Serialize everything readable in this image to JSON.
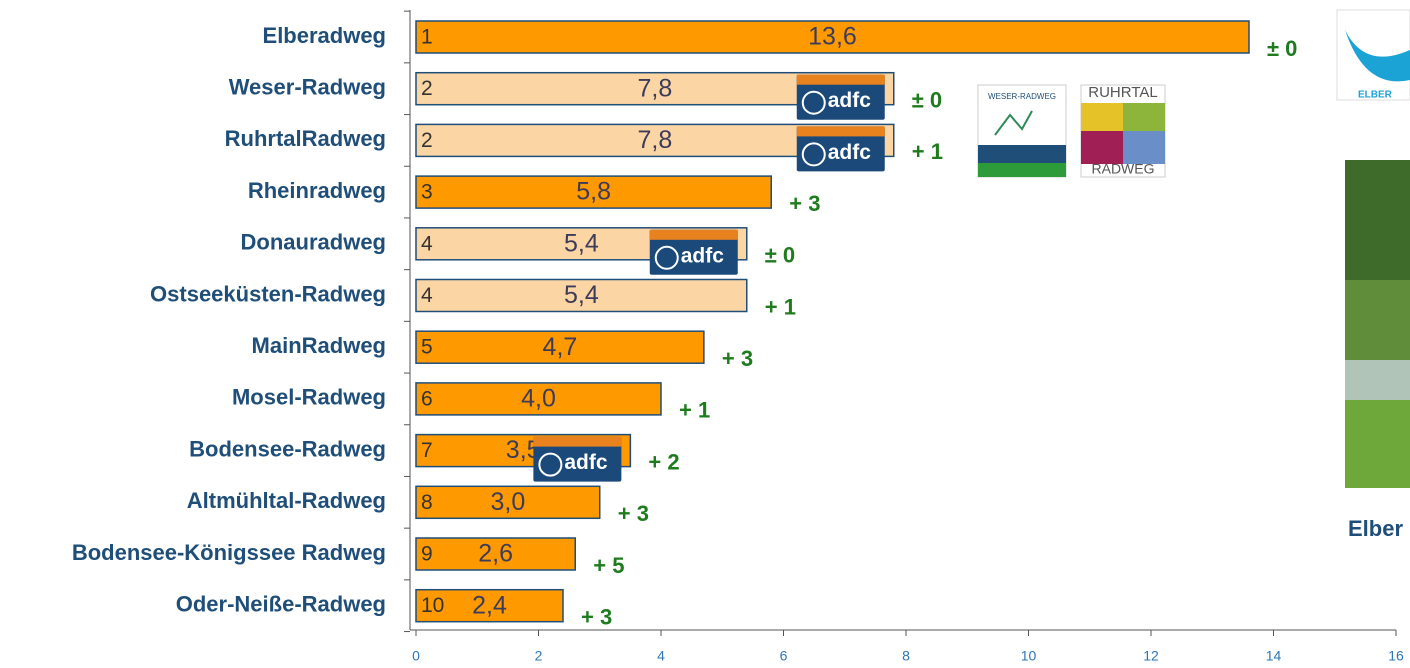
{
  "chart_data": {
    "type": "bar",
    "categories": [
      "Elberadweg",
      "Weser-Radweg",
      "RuhrtalRadweg",
      "Rheinradweg",
      "Donauradweg",
      "Ostseeküsten-Radweg",
      "MainRadweg",
      "Mosel-Radweg",
      "Bodensee-Radweg",
      "Altmühltal-Radweg",
      "Bodensee-Königssee Radweg",
      "Oder-Neiße-Radweg"
    ],
    "values": [
      13.6,
      7.8,
      7.8,
      5.8,
      5.4,
      5.4,
      4.7,
      4.0,
      3.5,
      3.0,
      2.6,
      2.4
    ],
    "value_labels": [
      "13,6",
      "7,8",
      "7,8",
      "5,8",
      "5,4",
      "5,4",
      "4,7",
      "4,0",
      "3,5",
      "3,0",
      "2,6",
      "2,4"
    ],
    "ranks": [
      1,
      2,
      2,
      3,
      4,
      4,
      5,
      6,
      7,
      8,
      9,
      10
    ],
    "changes": [
      "± 0",
      "± 0",
      "+ 1",
      "+ 3",
      "± 0",
      "+ 1",
      "+ 3",
      "+ 1",
      "+ 2",
      "+ 3",
      "+ 5",
      "+ 3"
    ],
    "colors": [
      "#ff9900",
      "#fcd5a5",
      "#fcd5a5",
      "#ff9900",
      "#fcd5a5",
      "#fcd5a5",
      "#ff9900",
      "#ff9900",
      "#ff9900",
      "#ff9900",
      "#ff9900",
      "#ff9900"
    ],
    "badges": [
      null,
      "adfc",
      "adfc",
      null,
      "adfc",
      null,
      null,
      null,
      "adfc",
      null,
      null,
      null
    ],
    "xlim": [
      0,
      16
    ],
    "xticks": [
      0,
      2,
      4,
      6,
      8,
      10,
      12,
      14,
      16
    ]
  },
  "logos": {
    "weser": "WESER-RADWEG",
    "ruhrtal_top": "RUHRTAL",
    "ruhrtal_bottom": "RADWEG",
    "elbe": "ELBER"
  },
  "photo_caption": "Elber"
}
